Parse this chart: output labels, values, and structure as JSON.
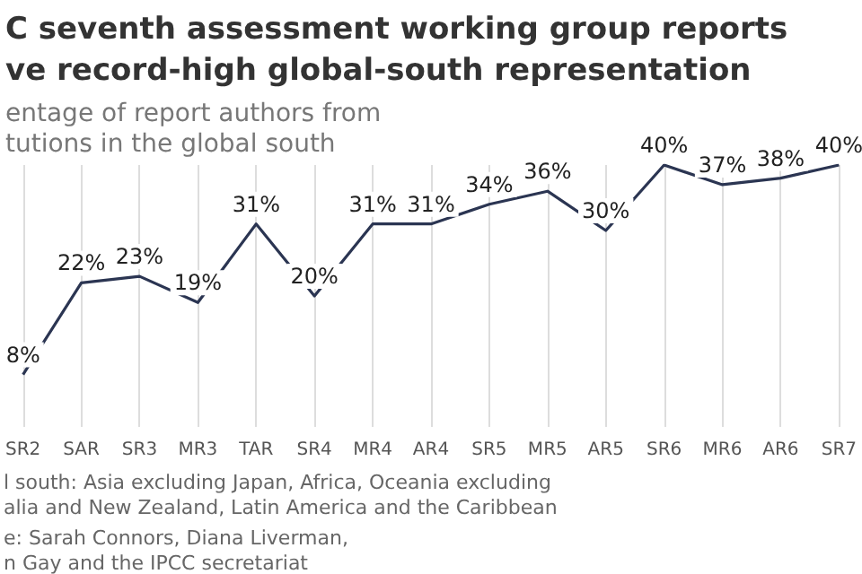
{
  "chart_data": {
    "type": "line",
    "title": "C seventh assessment working group reports\nve record-high global-south representation",
    "subtitle": "entage of report authors from\ntutions in the global south",
    "categories": [
      "SR2",
      "SAR",
      "SR3",
      "MR3",
      "TAR",
      "SR4",
      "MR4",
      "AR4",
      "SR5",
      "MR5",
      "AR5",
      "SR6",
      "MR6",
      "AR6",
      "SR7"
    ],
    "values": [
      8,
      22,
      23,
      19,
      31,
      20,
      31,
      31,
      34,
      36,
      30,
      40,
      37,
      38,
      40
    ],
    "color": "#2b3552",
    "value_labels": [
      "8%",
      "22%",
      "23%",
      "19%",
      "31%",
      "20%",
      "31%",
      "31%",
      "34%",
      "36%",
      "30%",
      "40%",
      "37%",
      "38%",
      "40%"
    ],
    "grid": "x",
    "marker": "none",
    "annotations": [
      "l south: Asia excluding Japan, Africa, Oceania excluding\nalia and New Zealand, Latin America and the Caribbean",
      "e: Sarah Connors, Diana Liverman,\nn Gay and the IPCC secretariat"
    ]
  }
}
